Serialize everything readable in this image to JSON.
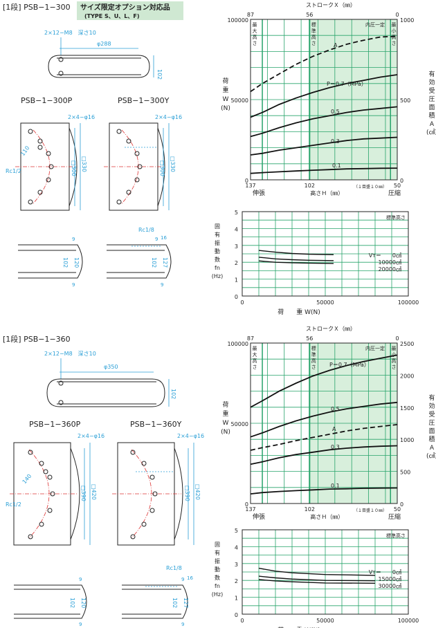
{
  "sections": [
    {
      "header": "[1段] PSB−1−300",
      "badge_line1": "サイズ限定オプション対応品",
      "badge_line2": "(TYPE S、U、L、F)",
      "top": {
        "holes": "2×12−M8　深さ10",
        "width": "φ288",
        "height": "102"
      },
      "view_p": {
        "title": "PSB−1−300P",
        "holes": "2×4−φ16",
        "radius": "110",
        "port": "Rc1/2",
        "dim1": "□300",
        "dim2": "□330"
      },
      "view_y": {
        "title": "PSB−1−300Y",
        "holes": "2×4−φ16",
        "dim1": "□300",
        "dim2": "□330"
      },
      "side_p": {
        "t1": "9",
        "h1": "102",
        "h2": "120",
        "t2": "9"
      },
      "side_y": {
        "port": "Rc1/8",
        "p": "16",
        "t1": "9",
        "h1": "102",
        "h2": "127",
        "t2": "9"
      },
      "load": {
        "stroke_title": "ストロークＸ（㎜）",
        "stroke_ticks": [
          "87",
          "56",
          "0"
        ],
        "y_ticks": [
          "100000",
          "50000",
          "0"
        ],
        "y2_ticks": [
          "1000",
          "500",
          "0"
        ],
        "zones": [
          "最大高さ",
          "標準高さ",
          "内圧一定",
          "最小高さ"
        ],
        "ylabel": [
          "荷",
          "重",
          "W",
          "(N)"
        ],
        "y2label": [
          "有",
          "効",
          "受",
          "圧",
          "面",
          "積",
          "A",
          "(㎠)"
        ],
        "x_ticks": [
          "137",
          "102",
          "50"
        ],
        "x_left": "伸張",
        "x_right": "圧縮",
        "x_title": "高さＨ（㎜）",
        "x_note": "（１目盛１０㎜）",
        "curve_labels": [
          "A",
          "P＝0.7（MPa）",
          "0.5",
          "0.3",
          "0.1"
        ]
      },
      "freq": {
        "y_ticks": [
          "5",
          "4",
          "3",
          "2",
          "1",
          "0"
        ],
        "x_ticks": [
          "0",
          "50000",
          "100000"
        ],
        "ylabel": [
          "固",
          "有",
          "振",
          "動",
          "数",
          "fn",
          "(Hz)"
        ],
        "xlabel": "荷　　重 W(N)",
        "corner": "標準高さ",
        "legend": [
          "Vт＝　　0㎠",
          "10000㎠",
          "20000㎠"
        ]
      }
    },
    {
      "header": "[1段] PSB−1−360",
      "top": {
        "holes": "2×12−M8　深さ10",
        "width": "φ350",
        "height": "102"
      },
      "view_p": {
        "title": "PSB−1−360P",
        "holes": "2×4−φ16",
        "radius": "140",
        "port": "Rc1/2",
        "dim1": "□390",
        "dim2": "□420"
      },
      "view_y": {
        "title": "PSB−1−360Y",
        "holes": "2×4−φ16",
        "dim1": "□390",
        "dim2": "□420"
      },
      "side_p": {
        "t1": "9",
        "h1": "102",
        "h2": "120",
        "t2": "9"
      },
      "side_y": {
        "port": "Rc1/8",
        "p": "16",
        "t1": "9",
        "h1": "102",
        "h2": "127",
        "t2": "9"
      },
      "load": {
        "stroke_title": "ストロークＸ（㎜）",
        "stroke_ticks": [
          "87",
          "56",
          "0"
        ],
        "y_ticks": [
          "100000",
          "50000",
          "0"
        ],
        "y2_ticks": [
          "2500",
          "2000",
          "1500",
          "1000",
          "500",
          "0"
        ],
        "zones": [
          "最大高さ",
          "標準高さ",
          "内圧一定",
          "最小高さ"
        ],
        "ylabel": [
          "荷",
          "重",
          "W",
          "(N)"
        ],
        "y2label": [
          "有",
          "効",
          "受",
          "圧",
          "面",
          "積",
          "A",
          "(㎠)"
        ],
        "x_ticks": [
          "137",
          "102",
          "50"
        ],
        "x_left": "伸張",
        "x_right": "圧縮",
        "x_title": "高さＨ（㎜）",
        "x_note": "（１目盛１０㎜）",
        "curve_labels": [
          "P＝0.7（MPa）",
          "0.5",
          "A",
          "0.3",
          "0.1"
        ]
      },
      "freq": {
        "y_ticks": [
          "5",
          "4",
          "3",
          "2",
          "1",
          "0"
        ],
        "x_ticks": [
          "0",
          "50000",
          "100000"
        ],
        "ylabel": [
          "固",
          "有",
          "振",
          "動",
          "数",
          "fn",
          "(Hz)"
        ],
        "xlabel": "荷　　重 W(N)",
        "corner": "標準高さ",
        "legend": [
          "Vт＝　　0㎠",
          "15000㎠",
          "30000㎠"
        ]
      }
    }
  ],
  "chart_data": [
    {
      "type": "line",
      "title": "",
      "x": [
        137,
        130,
        120,
        110,
        100,
        90,
        80,
        70,
        60,
        50
      ],
      "xlabel": "高さＨ（㎜）",
      "ylabel": "荷重W(N)",
      "xlim": [
        137,
        50
      ],
      "ylim": [
        0,
        100000
      ],
      "y2lim": [
        0,
        1000
      ],
      "series": [
        {
          "name": "A",
          "axis": "y2",
          "dashed": true,
          "values": [
            550,
            600,
            660,
            720,
            770,
            810,
            845,
            870,
            890,
            895
          ]
        },
        {
          "name": "P＝0.7（MPa）",
          "values": [
            39000,
            42000,
            47000,
            51000,
            54500,
            57500,
            60000,
            62000,
            64000,
            65500
          ]
        },
        {
          "name": "0.5",
          "values": [
            27000,
            29000,
            32500,
            35500,
            38000,
            40000,
            42000,
            43500,
            44500,
            45500
          ]
        },
        {
          "name": "0.3",
          "values": [
            15500,
            16500,
            18500,
            20000,
            21500,
            23000,
            24500,
            25500,
            26000,
            26500
          ]
        },
        {
          "name": "0.1",
          "values": [
            4000,
            4500,
            5000,
            5500,
            6000,
            6400,
            6800,
            7000,
            7200,
            7300
          ]
        }
      ]
    },
    {
      "type": "line",
      "title": "",
      "x": [
        10000,
        20000,
        30000,
        40000,
        55000
      ],
      "xlabel": "荷　　重 W(N)",
      "ylabel": "固有振動数 fn (Hz)",
      "xlim": [
        0,
        100000
      ],
      "ylim": [
        0,
        5
      ],
      "series": [
        {
          "name": "Vт＝0㎠",
          "values": [
            2.7,
            2.6,
            2.52,
            2.48,
            2.45
          ]
        },
        {
          "name": "10000㎠",
          "values": [
            2.3,
            2.2,
            2.15,
            2.12,
            2.1
          ]
        },
        {
          "name": "20000㎠",
          "values": [
            2.08,
            2.0,
            1.97,
            1.95,
            1.93
          ]
        }
      ]
    },
    {
      "type": "line",
      "title": "",
      "x": [
        137,
        130,
        120,
        110,
        100,
        90,
        80,
        70,
        60,
        50
      ],
      "xlabel": "高さＨ（㎜）",
      "ylabel": "荷重W(N)",
      "xlim": [
        137,
        50
      ],
      "ylim": [
        0,
        100000
      ],
      "y2lim": [
        0,
        2500
      ],
      "series": [
        {
          "name": "P＝0.7（MPa）",
          "values": [
            60000,
            64000,
            70000,
            75000,
            79500,
            83000,
            86000,
            88500,
            90500,
            92500
          ]
        },
        {
          "name": "0.5",
          "values": [
            41500,
            44000,
            48000,
            51500,
            54500,
            57000,
            59000,
            60500,
            62000,
            63000
          ]
        },
        {
          "name": "A",
          "axis": "y2",
          "dashed": true,
          "values": [
            830,
            870,
            920,
            980,
            1030,
            1080,
            1130,
            1170,
            1200,
            1230
          ]
        },
        {
          "name": "0.3",
          "values": [
            24500,
            26000,
            28500,
            30500,
            32000,
            33500,
            34500,
            35200,
            35700,
            36000
          ]
        },
        {
          "name": "0.1",
          "values": [
            6000,
            6800,
            7500,
            8000,
            8500,
            9000,
            9200,
            9500,
            9600,
            9700
          ]
        }
      ]
    },
    {
      "type": "line",
      "title": "",
      "x": [
        10000,
        20000,
        30000,
        50000,
        80000
      ],
      "xlabel": "荷　　重 W(N)",
      "ylabel": "固有振動数 fn (Hz)",
      "xlim": [
        0,
        100000
      ],
      "ylim": [
        0,
        5
      ],
      "series": [
        {
          "name": "Vт＝0㎠",
          "values": [
            2.72,
            2.55,
            2.45,
            2.35,
            2.3
          ]
        },
        {
          "name": "15000㎠",
          "values": [
            2.25,
            2.15,
            2.08,
            2.0,
            1.98
          ]
        },
        {
          "name": "30000㎠",
          "values": [
            2.05,
            1.97,
            1.92,
            1.85,
            1.83
          ]
        }
      ]
    }
  ]
}
